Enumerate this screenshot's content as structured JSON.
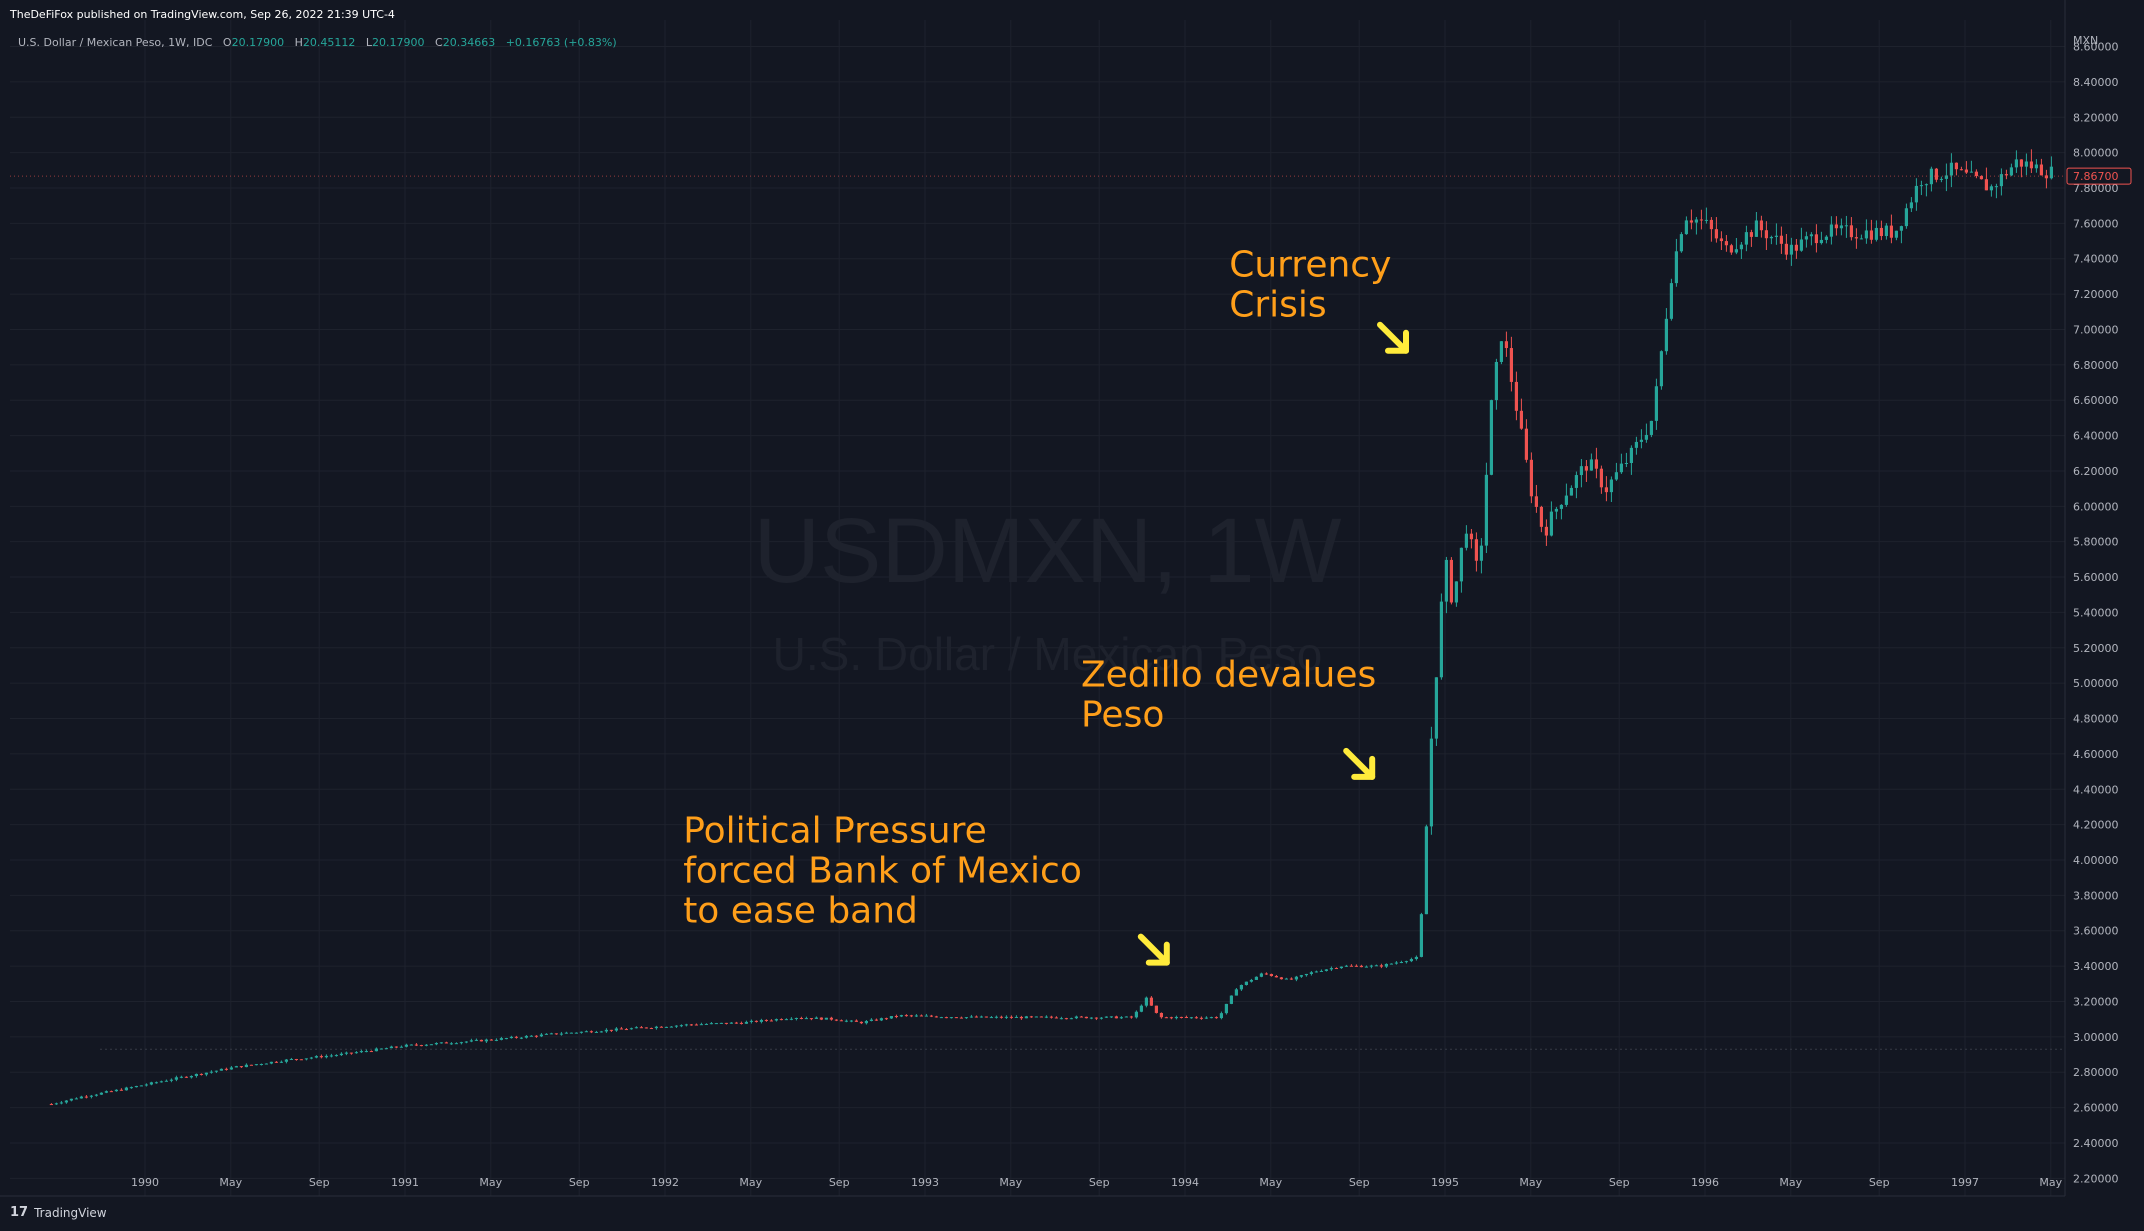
{
  "header": {
    "published": "TheDeFiFox published on TradingView.com, Sep 26, 2022 21:39 UTC-4"
  },
  "legend": {
    "symbol": "U.S. Dollar / Mexican Peso, 1W, IDC",
    "o_label": "O",
    "o_value": "20.17900",
    "h_label": "H",
    "h_value": "20.45112",
    "l_label": "L",
    "l_value": "20.17900",
    "c_label": "C",
    "c_value": "20.34663",
    "change": "+0.16763 (+0.83%)"
  },
  "footer": {
    "brand": "TradingView",
    "logo": "17"
  },
  "colors": {
    "background": "#131722",
    "grid": "#1e222d",
    "up": "#26a69a",
    "down": "#ef5350",
    "annotation": "#ff9f1a",
    "arrow": "#ffeb3b"
  },
  "chart_data": {
    "type": "candlestick",
    "symbol_watermark": "USDMXN, 1W",
    "name_watermark": "U.S. Dollar / Mexican Peso",
    "currency_label": "MXN",
    "last_price_label": "7.86700",
    "ylim": [
      2.1,
      8.75
    ],
    "y_ticks": [
      "2.20000",
      "2.40000",
      "2.60000",
      "2.80000",
      "3.00000",
      "3.20000",
      "3.40000",
      "3.60000",
      "3.80000",
      "4.00000",
      "4.20000",
      "4.40000",
      "4.60000",
      "4.80000",
      "5.00000",
      "5.20000",
      "5.40000",
      "5.60000",
      "5.80000",
      "6.00000",
      "6.20000",
      "6.40000",
      "6.60000",
      "6.80000",
      "7.00000",
      "7.20000",
      "7.40000",
      "7.60000",
      "7.80000",
      "8.00000",
      "8.20000",
      "8.40000",
      "8.60000"
    ],
    "x_ticks": [
      {
        "label": "1990",
        "t": 1990.0
      },
      {
        "label": "May",
        "t": 1990.33
      },
      {
        "label": "Sep",
        "t": 1990.67
      },
      {
        "label": "1991",
        "t": 1991.0
      },
      {
        "label": "May",
        "t": 1991.33
      },
      {
        "label": "Sep",
        "t": 1991.67
      },
      {
        "label": "1992",
        "t": 1992.0
      },
      {
        "label": "May",
        "t": 1992.33
      },
      {
        "label": "Sep",
        "t": 1992.67
      },
      {
        "label": "1993",
        "t": 1993.0
      },
      {
        "label": "May",
        "t": 1993.33
      },
      {
        "label": "Sep",
        "t": 1993.67
      },
      {
        "label": "1994",
        "t": 1994.0
      },
      {
        "label": "May",
        "t": 1994.33
      },
      {
        "label": "Sep",
        "t": 1994.67
      },
      {
        "label": "1995",
        "t": 1995.0
      },
      {
        "label": "May",
        "t": 1995.33
      },
      {
        "label": "Sep",
        "t": 1995.67
      },
      {
        "label": "1996",
        "t": 1996.0
      },
      {
        "label": "May",
        "t": 1996.33
      },
      {
        "label": "Sep",
        "t": 1996.67
      },
      {
        "label": "1997",
        "t": 1997.0
      },
      {
        "label": "May",
        "t": 1997.33
      }
    ],
    "series": [
      {
        "t": 1989.64,
        "c": 2.62
      },
      {
        "t": 1989.75,
        "c": 2.66
      },
      {
        "t": 1989.9,
        "c": 2.7
      },
      {
        "t": 1990.1,
        "c": 2.76
      },
      {
        "t": 1990.35,
        "c": 2.83
      },
      {
        "t": 1990.55,
        "c": 2.87
      },
      {
        "t": 1990.75,
        "c": 2.9
      },
      {
        "t": 1991.0,
        "c": 2.95
      },
      {
        "t": 1991.3,
        "c": 2.98
      },
      {
        "t": 1991.6,
        "c": 3.02
      },
      {
        "t": 1991.9,
        "c": 3.05
      },
      {
        "t": 1992.1,
        "c": 3.07
      },
      {
        "t": 1992.3,
        "c": 3.08
      },
      {
        "t": 1992.5,
        "c": 3.11
      },
      {
        "t": 1992.65,
        "c": 3.1
      },
      {
        "t": 1992.75,
        "c": 3.08
      },
      {
        "t": 1992.9,
        "c": 3.12
      },
      {
        "t": 1993.2,
        "c": 3.11
      },
      {
        "t": 1993.5,
        "c": 3.11
      },
      {
        "t": 1993.8,
        "c": 3.11
      },
      {
        "t": 1993.85,
        "c": 3.22
      },
      {
        "t": 1993.9,
        "c": 3.11
      },
      {
        "t": 1994.13,
        "c": 3.11
      },
      {
        "t": 1994.2,
        "c": 3.28
      },
      {
        "t": 1994.3,
        "c": 3.36
      },
      {
        "t": 1994.4,
        "c": 3.32
      },
      {
        "t": 1994.5,
        "c": 3.37
      },
      {
        "t": 1994.6,
        "c": 3.4
      },
      {
        "t": 1994.75,
        "c": 3.4
      },
      {
        "t": 1994.9,
        "c": 3.45
      },
      {
        "t": 1994.95,
        "c": 4.75
      },
      {
        "t": 1995.0,
        "c": 5.7
      },
      {
        "t": 1995.03,
        "c": 5.45
      },
      {
        "t": 1995.08,
        "c": 5.9
      },
      {
        "t": 1995.13,
        "c": 5.6
      },
      {
        "t": 1995.18,
        "c": 6.6
      },
      {
        "t": 1995.22,
        "c": 7.0
      },
      {
        "t": 1995.27,
        "c": 6.6
      },
      {
        "t": 1995.33,
        "c": 6.1
      },
      {
        "t": 1995.38,
        "c": 5.85
      },
      {
        "t": 1995.45,
        "c": 6.05
      },
      {
        "t": 1995.55,
        "c": 6.25
      },
      {
        "t": 1995.62,
        "c": 6.1
      },
      {
        "t": 1995.72,
        "c": 6.3
      },
      {
        "t": 1995.8,
        "c": 6.5
      },
      {
        "t": 1995.87,
        "c": 7.3
      },
      {
        "t": 1995.92,
        "c": 7.65
      },
      {
        "t": 1996.0,
        "c": 7.6
      },
      {
        "t": 1996.08,
        "c": 7.45
      },
      {
        "t": 1996.2,
        "c": 7.58
      },
      {
        "t": 1996.33,
        "c": 7.45
      },
      {
        "t": 1996.45,
        "c": 7.55
      },
      {
        "t": 1996.6,
        "c": 7.55
      },
      {
        "t": 1996.73,
        "c": 7.55
      },
      {
        "t": 1996.83,
        "c": 7.85
      },
      {
        "t": 1996.95,
        "c": 7.9
      },
      {
        "t": 1997.1,
        "c": 7.8
      },
      {
        "t": 1997.2,
        "c": 7.95
      },
      {
        "t": 1997.35,
        "c": 7.88
      }
    ],
    "annotations": [
      {
        "lines": [
          "Currency",
          "Crisis"
        ],
        "t": 1994.17,
        "v": 7.3,
        "arrow_t": 1994.85,
        "arrow_v": 6.88
      },
      {
        "lines": [
          "Zedillo devalues",
          "Peso"
        ],
        "t": 1993.6,
        "v": 4.98,
        "arrow_t": 1994.72,
        "arrow_v": 4.47
      },
      {
        "lines": [
          "Political Pressure",
          "forced Bank of Mexico",
          "to ease band"
        ],
        "t": 1992.07,
        "v": 4.1,
        "arrow_t": 1993.93,
        "arrow_v": 3.42
      }
    ]
  }
}
